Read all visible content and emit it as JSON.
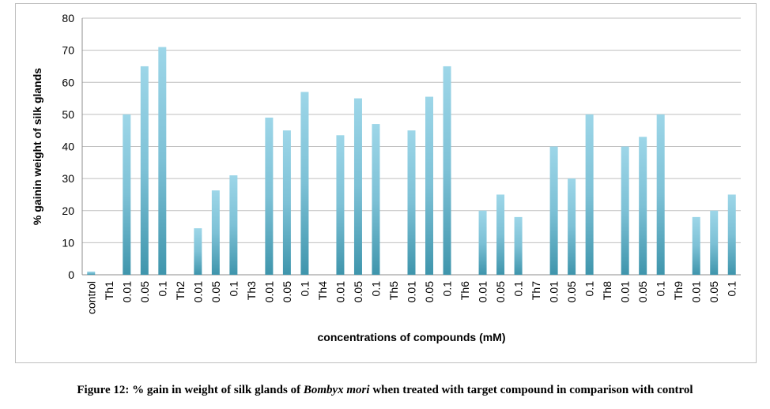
{
  "chart_data": {
    "type": "bar",
    "title": "",
    "xlabel": "concentrations of compounds (mM)",
    "ylabel": "% gainin weight of silk glands",
    "ylim": [
      0,
      80
    ],
    "yticks": [
      0,
      10,
      20,
      30,
      40,
      50,
      60,
      70,
      80
    ],
    "grid": "horizontal",
    "legend": "none",
    "bar_color": "#7fc3d8",
    "categories": [
      "control",
      "Th1",
      "0.01",
      "0.05",
      "0.1",
      "Th2",
      "0.01",
      "0.05",
      "0.1",
      "Th3",
      "0.01",
      "0.05",
      "0.1",
      "Th4",
      "0.01",
      "0.05",
      "0.1",
      "Th5",
      "0.01",
      "0.05",
      "0.1",
      "Th6",
      "0.01",
      "0.05",
      "0.1",
      "Th7",
      "0.01",
      "0.05",
      "0.1",
      "Th8",
      "0.01",
      "0.05",
      "0.1",
      "Th9",
      "0.01",
      "0.05",
      "0.1"
    ],
    "values": [
      1,
      0,
      50,
      65,
      71,
      0,
      14.5,
      26.3,
      31,
      0,
      49,
      45,
      57,
      0,
      43.5,
      55,
      47,
      0,
      45,
      55.5,
      65,
      0,
      20,
      25,
      18,
      0,
      40,
      30,
      50,
      0,
      40,
      43,
      50,
      0,
      18,
      20,
      25
    ]
  },
  "caption": {
    "prefix": "Figure 12: % gain in weight of silk glands of ",
    "species": "Bombyx mori",
    "suffix": " when treated with target compound in comparison with control"
  }
}
